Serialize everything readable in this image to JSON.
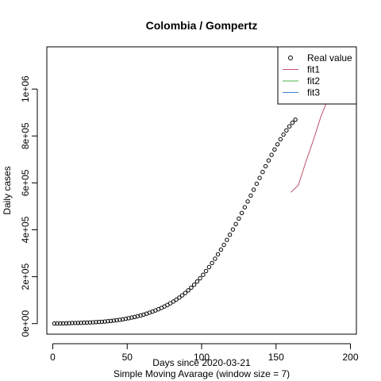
{
  "chart_data": {
    "type": "line",
    "title": "Colombia / Gompertz",
    "xlabel": "Days since 2020-03-21",
    "xlabel_sub": "Simple Moving Avarage (window size = 7)",
    "ylabel": "Daily cases",
    "xlim": [
      -4,
      204
    ],
    "ylim": [
      -45000,
      1180000
    ],
    "x_ticks": [
      0,
      50,
      100,
      150,
      200
    ],
    "x_tick_labels": [
      "0",
      "50",
      "100",
      "150",
      "200"
    ],
    "y_ticks": [
      0,
      200000,
      400000,
      600000,
      800000,
      1000000
    ],
    "y_tick_labels": [
      "0e+00",
      "2e+05",
      "4e+05",
      "6e+05",
      "8e+05",
      "1e+06"
    ],
    "legend_position": "top-right",
    "series": [
      {
        "name": "Real value",
        "style": "points",
        "color": "#000000",
        "x": [
          1,
          3,
          5,
          7,
          9,
          11,
          13,
          15,
          17,
          19,
          21,
          23,
          25,
          27,
          29,
          31,
          33,
          35,
          37,
          39,
          41,
          43,
          45,
          47,
          49,
          51,
          53,
          55,
          57,
          59,
          61,
          63,
          65,
          67,
          69,
          71,
          73,
          75,
          77,
          79,
          81,
          83,
          85,
          87,
          89,
          91,
          93,
          95,
          97,
          99,
          101,
          103,
          105,
          107,
          109,
          111,
          113,
          115,
          117,
          119,
          121,
          123,
          125,
          127,
          129,
          131,
          133,
          135,
          137,
          139,
          141,
          143,
          145,
          147,
          149,
          151,
          153,
          155,
          157,
          159,
          161,
          163
        ],
        "y": [
          231,
          374,
          600,
          904,
          1311,
          1789,
          2256,
          2670,
          3077,
          3465,
          3905,
          4319,
          4929,
          5560,
          6283,
          7015,
          7866,
          8881,
          10058,
          11409,
          12894,
          14500,
          16268,
          18266,
          20549,
          23007,
          25597,
          28423,
          31461,
          34748,
          38361,
          42345,
          46669,
          51245,
          56135,
          61380,
          66977,
          72956,
          79418,
          86495,
          94142,
          102281,
          111144,
          120625,
          130789,
          141709,
          153448,
          165901,
          179226,
          193333,
          208280,
          224192,
          240779,
          258178,
          276446,
          295485,
          315307,
          335813,
          357004,
          378859,
          401261,
          424311,
          447783,
          471786,
          496136,
          520819,
          545775,
          570907,
          596140,
          621351,
          646420,
          671203,
          695560,
          719314,
          742349,
          764513,
          785632,
          805567,
          824101,
          841043,
          856216,
          869368
        ]
      },
      {
        "name": "fit1",
        "style": "line",
        "color": "#c0506a",
        "x": [
          160,
          165,
          170,
          175,
          180,
          185,
          190,
          195,
          200
        ],
        "y": [
          560000,
          590000,
          690000,
          780000,
          880000,
          960000,
          1040000,
          1110000,
          1160000
        ]
      },
      {
        "name": "fit2",
        "style": "line",
        "color": "#4db34d",
        "x": [],
        "y": []
      },
      {
        "name": "fit3",
        "style": "line",
        "color": "#3f7fcf",
        "x": [],
        "y": []
      }
    ]
  }
}
